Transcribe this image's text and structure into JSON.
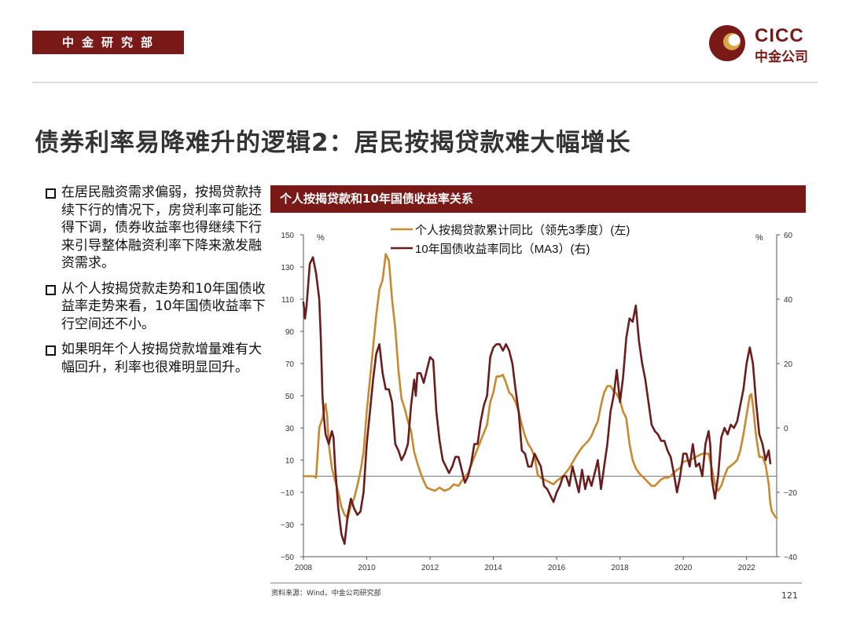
{
  "header": {
    "department": "中金研究部",
    "logo_en": "CICC",
    "logo_cn": "中金公司",
    "brand_color": "#7a1a18"
  },
  "title": "债券利率易降难升的逻辑2：居民按揭贷款难大幅增长",
  "bullets": [
    "在居民融资需求偏弱，按揭贷款持续下行的情况下，房贷利率可能还得下调，债券收益率也得继续下行来引导整体融资利率下降来激发融资需求。",
    "从个人按揭贷款走势和10年国债收益率走势来看，10年国债收益率下行空间还不小。",
    "如果明年个人按揭贷款增量难有大幅回升，利率也很难明显回升。"
  ],
  "chart_header": "个人按揭贷款和10年国债收益率关系",
  "footer": {
    "source": "资料来源：Wind，中金公司研究部",
    "page_number": "121"
  },
  "chart_data": {
    "type": "line",
    "x_ticks": [
      "2008",
      "2010",
      "2012",
      "2014",
      "2016",
      "2018",
      "2020",
      "2022"
    ],
    "xlim": [
      2008,
      2022.95
    ],
    "left_axis": {
      "unit": "%",
      "ylim": [
        -50,
        150
      ],
      "ticks": [
        "150",
        "130",
        "110",
        "90",
        "70",
        "50",
        "30",
        "10",
        "−10",
        "−30",
        "−50"
      ]
    },
    "right_axis": {
      "unit": "%",
      "ylim": [
        -40,
        60
      ],
      "ticks": [
        "60",
        "40",
        "20",
        "0",
        "−20",
        "−40"
      ]
    },
    "series": [
      {
        "name": "个人按揭贷款累计同比（领先3季度）(左)",
        "axis": "left",
        "color": "#c8892f",
        "points": [
          [
            2008.0,
            0
          ],
          [
            2008.33,
            0
          ],
          [
            2008.4,
            -1
          ],
          [
            2008.5,
            30
          ],
          [
            2008.6,
            36
          ],
          [
            2008.7,
            45
          ],
          [
            2008.75,
            37
          ],
          [
            2008.8,
            20
          ],
          [
            2008.9,
            5
          ],
          [
            2009.0,
            -3
          ],
          [
            2009.1,
            -10
          ],
          [
            2009.2,
            -19
          ],
          [
            2009.3,
            -24
          ],
          [
            2009.4,
            -26
          ],
          [
            2009.5,
            -18
          ],
          [
            2009.6,
            -14
          ],
          [
            2009.7,
            -6
          ],
          [
            2009.8,
            3
          ],
          [
            2009.9,
            15
          ],
          [
            2010.0,
            40
          ],
          [
            2010.1,
            60
          ],
          [
            2010.2,
            80
          ],
          [
            2010.3,
            100
          ],
          [
            2010.4,
            116
          ],
          [
            2010.5,
            122
          ],
          [
            2010.6,
            138
          ],
          [
            2010.7,
            134
          ],
          [
            2010.8,
            110
          ],
          [
            2010.9,
            92
          ],
          [
            2011.0,
            66
          ],
          [
            2011.1,
            48
          ],
          [
            2011.2,
            42
          ],
          [
            2011.3,
            34
          ],
          [
            2011.4,
            28
          ],
          [
            2011.5,
            15
          ],
          [
            2011.6,
            8
          ],
          [
            2011.7,
            2
          ],
          [
            2011.8,
            -3
          ],
          [
            2011.9,
            -7
          ],
          [
            2012.0,
            -8
          ],
          [
            2012.15,
            -9
          ],
          [
            2012.3,
            -7
          ],
          [
            2012.45,
            -9
          ],
          [
            2012.6,
            -8
          ],
          [
            2012.75,
            -5
          ],
          [
            2012.9,
            -6
          ],
          [
            2013.0,
            -3
          ],
          [
            2013.2,
            2
          ],
          [
            2013.4,
            12
          ],
          [
            2013.6,
            22
          ],
          [
            2013.8,
            32
          ],
          [
            2013.9,
            46
          ],
          [
            2014.0,
            52
          ],
          [
            2014.1,
            62
          ],
          [
            2014.2,
            62
          ],
          [
            2014.3,
            63
          ],
          [
            2014.4,
            58
          ],
          [
            2014.5,
            52
          ],
          [
            2014.6,
            50
          ],
          [
            2014.7,
            46
          ],
          [
            2014.8,
            40
          ],
          [
            2014.9,
            32
          ],
          [
            2015.0,
            25
          ],
          [
            2015.1,
            20
          ],
          [
            2015.2,
            17
          ],
          [
            2015.3,
            12
          ],
          [
            2015.4,
            1
          ],
          [
            2015.5,
            -1
          ],
          [
            2015.7,
            -3
          ],
          [
            2015.9,
            -5
          ],
          [
            2016.0,
            -3
          ],
          [
            2016.2,
            0
          ],
          [
            2016.4,
            5
          ],
          [
            2016.6,
            12
          ],
          [
            2016.8,
            18
          ],
          [
            2017.0,
            22
          ],
          [
            2017.1,
            25
          ],
          [
            2017.2,
            30
          ],
          [
            2017.3,
            34
          ],
          [
            2017.4,
            44
          ],
          [
            2017.5,
            52
          ],
          [
            2017.6,
            56
          ],
          [
            2017.7,
            56
          ],
          [
            2017.8,
            53
          ],
          [
            2017.9,
            51
          ],
          [
            2018.0,
            47
          ],
          [
            2018.1,
            40
          ],
          [
            2018.2,
            36
          ],
          [
            2018.3,
            20
          ],
          [
            2018.4,
            10
          ],
          [
            2018.5,
            5
          ],
          [
            2018.6,
            2
          ],
          [
            2018.7,
            0
          ],
          [
            2018.8,
            -2
          ],
          [
            2018.9,
            -4
          ],
          [
            2019.0,
            -6
          ],
          [
            2019.1,
            -6
          ],
          [
            2019.2,
            -4
          ],
          [
            2019.3,
            -2
          ],
          [
            2019.4,
            -1
          ],
          [
            2019.5,
            -1
          ],
          [
            2019.6,
            0
          ],
          [
            2019.7,
            2
          ],
          [
            2019.8,
            4
          ],
          [
            2019.9,
            5
          ],
          [
            2020.0,
            9
          ],
          [
            2020.2,
            10
          ],
          [
            2020.4,
            12
          ],
          [
            2020.6,
            14
          ],
          [
            2020.8,
            14
          ],
          [
            2020.9,
            5
          ],
          [
            2021.0,
            -5
          ],
          [
            2021.1,
            -9
          ],
          [
            2021.2,
            -6
          ],
          [
            2021.3,
            0
          ],
          [
            2021.4,
            5
          ],
          [
            2021.6,
            8
          ],
          [
            2021.7,
            10
          ],
          [
            2021.8,
            16
          ],
          [
            2021.9,
            26
          ],
          [
            2022.0,
            38
          ],
          [
            2022.1,
            50
          ],
          [
            2022.15,
            51
          ],
          [
            2022.2,
            44
          ],
          [
            2022.3,
            25
          ],
          [
            2022.4,
            12
          ],
          [
            2022.5,
            12
          ],
          [
            2022.6,
            7
          ],
          [
            2022.7,
            -5
          ],
          [
            2022.75,
            -17
          ],
          [
            2022.8,
            -22
          ],
          [
            2022.9,
            -25
          ],
          [
            2022.95,
            -26
          ]
        ]
      },
      {
        "name": "10年国债收益率同比（MA3）(右)",
        "axis": "right",
        "color": "#6b1c1c",
        "points": [
          [
            2008.0,
            39
          ],
          [
            2008.05,
            34
          ],
          [
            2008.1,
            38
          ],
          [
            2008.2,
            51
          ],
          [
            2008.3,
            53
          ],
          [
            2008.4,
            48
          ],
          [
            2008.5,
            40
          ],
          [
            2008.55,
            28
          ],
          [
            2008.6,
            10
          ],
          [
            2008.65,
            3
          ],
          [
            2008.7,
            -2
          ],
          [
            2008.8,
            -5
          ],
          [
            2008.9,
            -1
          ],
          [
            2008.95,
            -3
          ],
          [
            2009.0,
            -12
          ],
          [
            2009.1,
            -25
          ],
          [
            2009.2,
            -33
          ],
          [
            2009.3,
            -36
          ],
          [
            2009.4,
            -27
          ],
          [
            2009.5,
            -22
          ],
          [
            2009.6,
            -25
          ],
          [
            2009.7,
            -27
          ],
          [
            2009.8,
            -26
          ],
          [
            2009.9,
            -20
          ],
          [
            2010.0,
            -5
          ],
          [
            2010.1,
            5
          ],
          [
            2010.2,
            15
          ],
          [
            2010.3,
            23
          ],
          [
            2010.4,
            26
          ],
          [
            2010.5,
            17
          ],
          [
            2010.6,
            12
          ],
          [
            2010.7,
            12
          ],
          [
            2010.8,
            8
          ],
          [
            2010.9,
            -5
          ],
          [
            2011.0,
            -7
          ],
          [
            2011.1,
            -10
          ],
          [
            2011.2,
            -8
          ],
          [
            2011.3,
            -5
          ],
          [
            2011.4,
            7
          ],
          [
            2011.5,
            15
          ],
          [
            2011.55,
            10
          ],
          [
            2011.6,
            17
          ],
          [
            2011.7,
            17
          ],
          [
            2011.8,
            14
          ],
          [
            2011.9,
            18
          ],
          [
            2012.0,
            22
          ],
          [
            2012.1,
            21
          ],
          [
            2012.2,
            5
          ],
          [
            2012.3,
            -4
          ],
          [
            2012.4,
            -10
          ],
          [
            2012.5,
            -12
          ],
          [
            2012.6,
            -14
          ],
          [
            2012.7,
            -12
          ],
          [
            2012.8,
            -9
          ],
          [
            2012.9,
            -9
          ],
          [
            2013.0,
            -13
          ],
          [
            2013.1,
            -17
          ],
          [
            2013.2,
            -15
          ],
          [
            2013.3,
            -11
          ],
          [
            2013.4,
            -5
          ],
          [
            2013.5,
            -5
          ],
          [
            2013.6,
            2
          ],
          [
            2013.7,
            7
          ],
          [
            2013.8,
            10
          ],
          [
            2013.9,
            22
          ],
          [
            2014.0,
            25
          ],
          [
            2014.1,
            26
          ],
          [
            2014.2,
            26
          ],
          [
            2014.3,
            24
          ],
          [
            2014.4,
            26
          ],
          [
            2014.5,
            24
          ],
          [
            2014.6,
            20
          ],
          [
            2014.7,
            12
          ],
          [
            2014.8,
            5
          ],
          [
            2014.9,
            -7
          ],
          [
            2015.0,
            -8
          ],
          [
            2015.1,
            -12
          ],
          [
            2015.2,
            -12
          ],
          [
            2015.3,
            -8
          ],
          [
            2015.4,
            -10
          ],
          [
            2015.5,
            -12
          ],
          [
            2015.6,
            -18
          ],
          [
            2015.7,
            -19
          ],
          [
            2015.8,
            -21
          ],
          [
            2015.9,
            -23
          ],
          [
            2016.0,
            -20
          ],
          [
            2016.1,
            -18
          ],
          [
            2016.2,
            -15
          ],
          [
            2016.3,
            -15
          ],
          [
            2016.4,
            -18
          ],
          [
            2016.5,
            -12
          ],
          [
            2016.6,
            -16
          ],
          [
            2016.7,
            -20
          ],
          [
            2016.8,
            -13
          ],
          [
            2016.9,
            -19
          ],
          [
            2017.0,
            -15
          ],
          [
            2017.1,
            -18
          ],
          [
            2017.2,
            -14
          ],
          [
            2017.3,
            -10
          ],
          [
            2017.4,
            -19
          ],
          [
            2017.5,
            -12
          ],
          [
            2017.6,
            -5
          ],
          [
            2017.7,
            5
          ],
          [
            2017.8,
            10
          ],
          [
            2017.9,
            18
          ],
          [
            2018.0,
            8
          ],
          [
            2018.1,
            16
          ],
          [
            2018.2,
            28
          ],
          [
            2018.3,
            34
          ],
          [
            2018.4,
            33
          ],
          [
            2018.5,
            38
          ],
          [
            2018.6,
            27
          ],
          [
            2018.7,
            20
          ],
          [
            2018.8,
            15
          ],
          [
            2018.9,
            8
          ],
          [
            2019.0,
            1
          ],
          [
            2019.1,
            -1
          ],
          [
            2019.2,
            -2
          ],
          [
            2019.3,
            -4
          ],
          [
            2019.4,
            -4
          ],
          [
            2019.5,
            -7
          ],
          [
            2019.6,
            -9
          ],
          [
            2019.7,
            -14
          ],
          [
            2019.8,
            -20
          ],
          [
            2019.9,
            -15
          ],
          [
            2020.0,
            -8
          ],
          [
            2020.1,
            -8
          ],
          [
            2020.2,
            -12
          ],
          [
            2020.3,
            -5
          ],
          [
            2020.4,
            -12
          ],
          [
            2020.5,
            -11
          ],
          [
            2020.6,
            -15
          ],
          [
            2020.7,
            -5
          ],
          [
            2020.8,
            -1
          ],
          [
            2020.85,
            -5
          ],
          [
            2020.9,
            -16
          ],
          [
            2021.0,
            -22
          ],
          [
            2021.1,
            -15
          ],
          [
            2021.2,
            -3
          ],
          [
            2021.3,
            0
          ],
          [
            2021.4,
            -2
          ],
          [
            2021.5,
            1
          ],
          [
            2021.6,
            0
          ],
          [
            2021.7,
            2
          ],
          [
            2021.8,
            7
          ],
          [
            2021.9,
            12
          ],
          [
            2022.0,
            20
          ],
          [
            2022.1,
            25
          ],
          [
            2022.2,
            20
          ],
          [
            2022.3,
            8
          ],
          [
            2022.4,
            -2
          ],
          [
            2022.5,
            -5
          ],
          [
            2022.6,
            -10
          ],
          [
            2022.7,
            -7
          ],
          [
            2022.75,
            -11
          ]
        ]
      }
    ]
  }
}
